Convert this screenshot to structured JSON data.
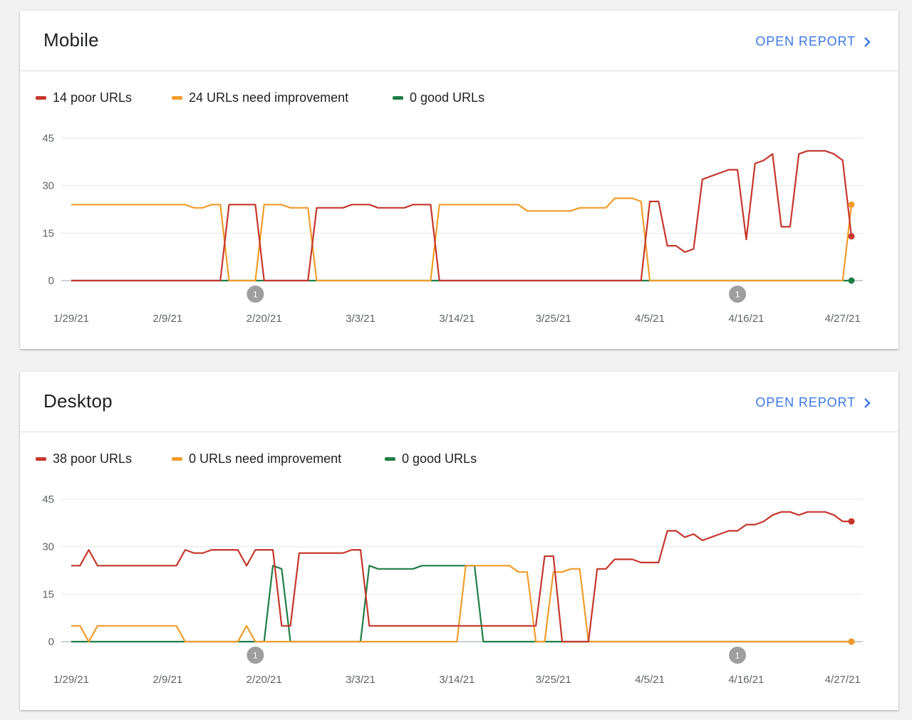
{
  "panels": [
    {
      "title": "Mobile",
      "open_report_label": "OPEN REPORT",
      "legend": [
        {
          "label": "14 poor URLs",
          "color": "#c5372c"
        },
        {
          "label": "24 URLs need improvement",
          "color": "#f09c2b"
        },
        {
          "label": "0 good URLs",
          "color": "#1e7e45"
        }
      ]
    },
    {
      "title": "Desktop",
      "open_report_label": "OPEN REPORT",
      "legend": [
        {
          "label": "38 poor URLs",
          "color": "#c5372c"
        },
        {
          "label": "0 URLs need improvement",
          "color": "#f09c2b"
        },
        {
          "label": "0 good URLs",
          "color": "#1e7e45"
        }
      ]
    }
  ],
  "chart_data": [
    {
      "type": "line",
      "x_labels": [
        "1/29/21",
        "2/9/21",
        "2/20/21",
        "3/3/21",
        "3/14/21",
        "3/25/21",
        "4/5/21",
        "4/16/21",
        "4/27/21"
      ],
      "x_start": "1/29/21",
      "x_end": "4/28/21",
      "y_ticks": [
        0,
        15,
        30,
        45
      ],
      "ylim": [
        0,
        45
      ],
      "grid": true,
      "legend_position": "top-left",
      "annotations": [
        {
          "x": "2/19/21",
          "label": "1"
        },
        {
          "x": "4/15/21",
          "label": "1"
        }
      ],
      "series": [
        {
          "name": "14 poor URLs",
          "color": "#c5372c",
          "points": [
            [
              "1/29/21",
              0
            ],
            [
              "2/15/21",
              0
            ],
            [
              "2/16/21",
              24
            ],
            [
              "2/19/21",
              24
            ],
            [
              "2/20/21",
              0
            ],
            [
              "2/25/21",
              0
            ],
            [
              "2/26/21",
              23
            ],
            [
              "3/1/21",
              23
            ],
            [
              "3/2/21",
              24
            ],
            [
              "3/4/21",
              24
            ],
            [
              "3/5/21",
              23
            ],
            [
              "3/8/21",
              23
            ],
            [
              "3/9/21",
              24
            ],
            [
              "3/11/21",
              24
            ],
            [
              "3/12/21",
              0
            ],
            [
              "4/4/21",
              0
            ],
            [
              "4/5/21",
              25
            ],
            [
              "4/6/21",
              25
            ],
            [
              "4/7/21",
              11
            ],
            [
              "4/8/21",
              11
            ],
            [
              "4/9/21",
              9
            ],
            [
              "4/10/21",
              10
            ],
            [
              "4/11/21",
              32
            ],
            [
              "4/14/21",
              35
            ],
            [
              "4/15/21",
              35
            ],
            [
              "4/16/21",
              13
            ],
            [
              "4/17/21",
              37
            ],
            [
              "4/18/21",
              38
            ],
            [
              "4/19/21",
              40
            ],
            [
              "4/20/21",
              17
            ],
            [
              "4/21/21",
              17
            ],
            [
              "4/22/21",
              40
            ],
            [
              "4/23/21",
              41
            ],
            [
              "4/25/21",
              41
            ],
            [
              "4/26/21",
              40
            ],
            [
              "4/27/21",
              38
            ],
            [
              "4/28/21",
              14
            ]
          ]
        },
        {
          "name": "24 URLs need improvement",
          "color": "#f09c2b",
          "points": [
            [
              "1/29/21",
              24
            ],
            [
              "2/11/21",
              24
            ],
            [
              "2/12/21",
              23
            ],
            [
              "2/13/21",
              23
            ],
            [
              "2/14/21",
              24
            ],
            [
              "2/15/21",
              24
            ],
            [
              "2/16/21",
              0
            ],
            [
              "2/19/21",
              0
            ],
            [
              "2/20/21",
              24
            ],
            [
              "2/22/21",
              24
            ],
            [
              "2/23/21",
              23
            ],
            [
              "2/25/21",
              23
            ],
            [
              "2/26/21",
              0
            ],
            [
              "3/11/21",
              0
            ],
            [
              "3/12/21",
              24
            ],
            [
              "3/21/21",
              24
            ],
            [
              "3/22/21",
              22
            ],
            [
              "3/27/21",
              22
            ],
            [
              "3/28/21",
              23
            ],
            [
              "3/31/21",
              23
            ],
            [
              "4/1/21",
              26
            ],
            [
              "4/3/21",
              26
            ],
            [
              "4/4/21",
              25
            ],
            [
              "4/5/21",
              0
            ],
            [
              "4/27/21",
              0
            ],
            [
              "4/28/21",
              24
            ]
          ]
        },
        {
          "name": "0 good URLs",
          "color": "#1e7e45",
          "points": [
            [
              "1/29/21",
              0
            ],
            [
              "4/28/21",
              0
            ]
          ]
        }
      ]
    },
    {
      "type": "line",
      "x_labels": [
        "1/29/21",
        "2/9/21",
        "2/20/21",
        "3/3/21",
        "3/14/21",
        "3/25/21",
        "4/5/21",
        "4/16/21",
        "4/27/21"
      ],
      "x_start": "1/29/21",
      "x_end": "4/28/21",
      "y_ticks": [
        0,
        15,
        30,
        45
      ],
      "ylim": [
        0,
        45
      ],
      "grid": true,
      "legend_position": "top-left",
      "annotations": [
        {
          "x": "2/19/21",
          "label": "1"
        },
        {
          "x": "4/15/21",
          "label": "1"
        }
      ],
      "series": [
        {
          "name": "38 poor URLs",
          "color": "#c5372c",
          "points": [
            [
              "1/29/21",
              24
            ],
            [
              "1/30/21",
              24
            ],
            [
              "1/31/21",
              29
            ],
            [
              "2/1/21",
              24
            ],
            [
              "2/10/21",
              24
            ],
            [
              "2/11/21",
              29
            ],
            [
              "2/12/21",
              28
            ],
            [
              "2/13/21",
              28
            ],
            [
              "2/14/21",
              29
            ],
            [
              "2/17/21",
              29
            ],
            [
              "2/18/21",
              24
            ],
            [
              "2/19/21",
              29
            ],
            [
              "2/21/21",
              29
            ],
            [
              "2/22/21",
              5
            ],
            [
              "2/23/21",
              5
            ],
            [
              "2/24/21",
              28
            ],
            [
              "3/1/21",
              28
            ],
            [
              "3/2/21",
              29
            ],
            [
              "3/3/21",
              29
            ],
            [
              "3/4/21",
              5
            ],
            [
              "3/23/21",
              5
            ],
            [
              "3/24/21",
              27
            ],
            [
              "3/25/21",
              27
            ],
            [
              "3/26/21",
              0
            ],
            [
              "3/29/21",
              0
            ],
            [
              "3/30/21",
              23
            ],
            [
              "3/31/21",
              23
            ],
            [
              "4/1/21",
              26
            ],
            [
              "4/3/21",
              26
            ],
            [
              "4/4/21",
              25
            ],
            [
              "4/6/21",
              25
            ],
            [
              "4/7/21",
              35
            ],
            [
              "4/8/21",
              35
            ],
            [
              "4/9/21",
              33
            ],
            [
              "4/10/21",
              34
            ],
            [
              "4/11/21",
              32
            ],
            [
              "4/14/21",
              35
            ],
            [
              "4/15/21",
              35
            ],
            [
              "4/16/21",
              37
            ],
            [
              "4/17/21",
              37
            ],
            [
              "4/18/21",
              38
            ],
            [
              "4/19/21",
              40
            ],
            [
              "4/20/21",
              41
            ],
            [
              "4/21/21",
              41
            ],
            [
              "4/22/21",
              40
            ],
            [
              "4/23/21",
              41
            ],
            [
              "4/25/21",
              41
            ],
            [
              "4/26/21",
              40
            ],
            [
              "4/27/21",
              38
            ],
            [
              "4/28/21",
              38
            ]
          ]
        },
        {
          "name": "0 URLs need improvement",
          "color": "#f09c2b",
          "points": [
            [
              "1/29/21",
              5
            ],
            [
              "1/30/21",
              5
            ],
            [
              "1/31/21",
              0
            ],
            [
              "2/1/21",
              5
            ],
            [
              "2/10/21",
              5
            ],
            [
              "2/11/21",
              0
            ],
            [
              "2/17/21",
              0
            ],
            [
              "2/18/21",
              5
            ],
            [
              "2/19/21",
              0
            ],
            [
              "3/14/21",
              0
            ],
            [
              "3/15/21",
              24
            ],
            [
              "3/20/21",
              24
            ],
            [
              "3/21/21",
              22
            ],
            [
              "3/22/21",
              22
            ],
            [
              "3/23/21",
              0
            ],
            [
              "3/24/21",
              0
            ],
            [
              "3/25/21",
              22
            ],
            [
              "3/26/21",
              22
            ],
            [
              "3/27/21",
              23
            ],
            [
              "3/28/21",
              23
            ],
            [
              "3/29/21",
              0
            ],
            [
              "4/28/21",
              0
            ]
          ]
        },
        {
          "name": "0 good URLs",
          "color": "#1e7e45",
          "points": [
            [
              "1/29/21",
              0
            ],
            [
              "2/20/21",
              0
            ],
            [
              "2/21/21",
              24
            ],
            [
              "2/22/21",
              23
            ],
            [
              "2/23/21",
              0
            ],
            [
              "3/3/21",
              0
            ],
            [
              "3/4/21",
              24
            ],
            [
              "3/5/21",
              23
            ],
            [
              "3/9/21",
              23
            ],
            [
              "3/10/21",
              24
            ],
            [
              "3/16/21",
              24
            ],
            [
              "3/17/21",
              0
            ],
            [
              "4/28/21",
              0
            ]
          ]
        }
      ]
    }
  ]
}
